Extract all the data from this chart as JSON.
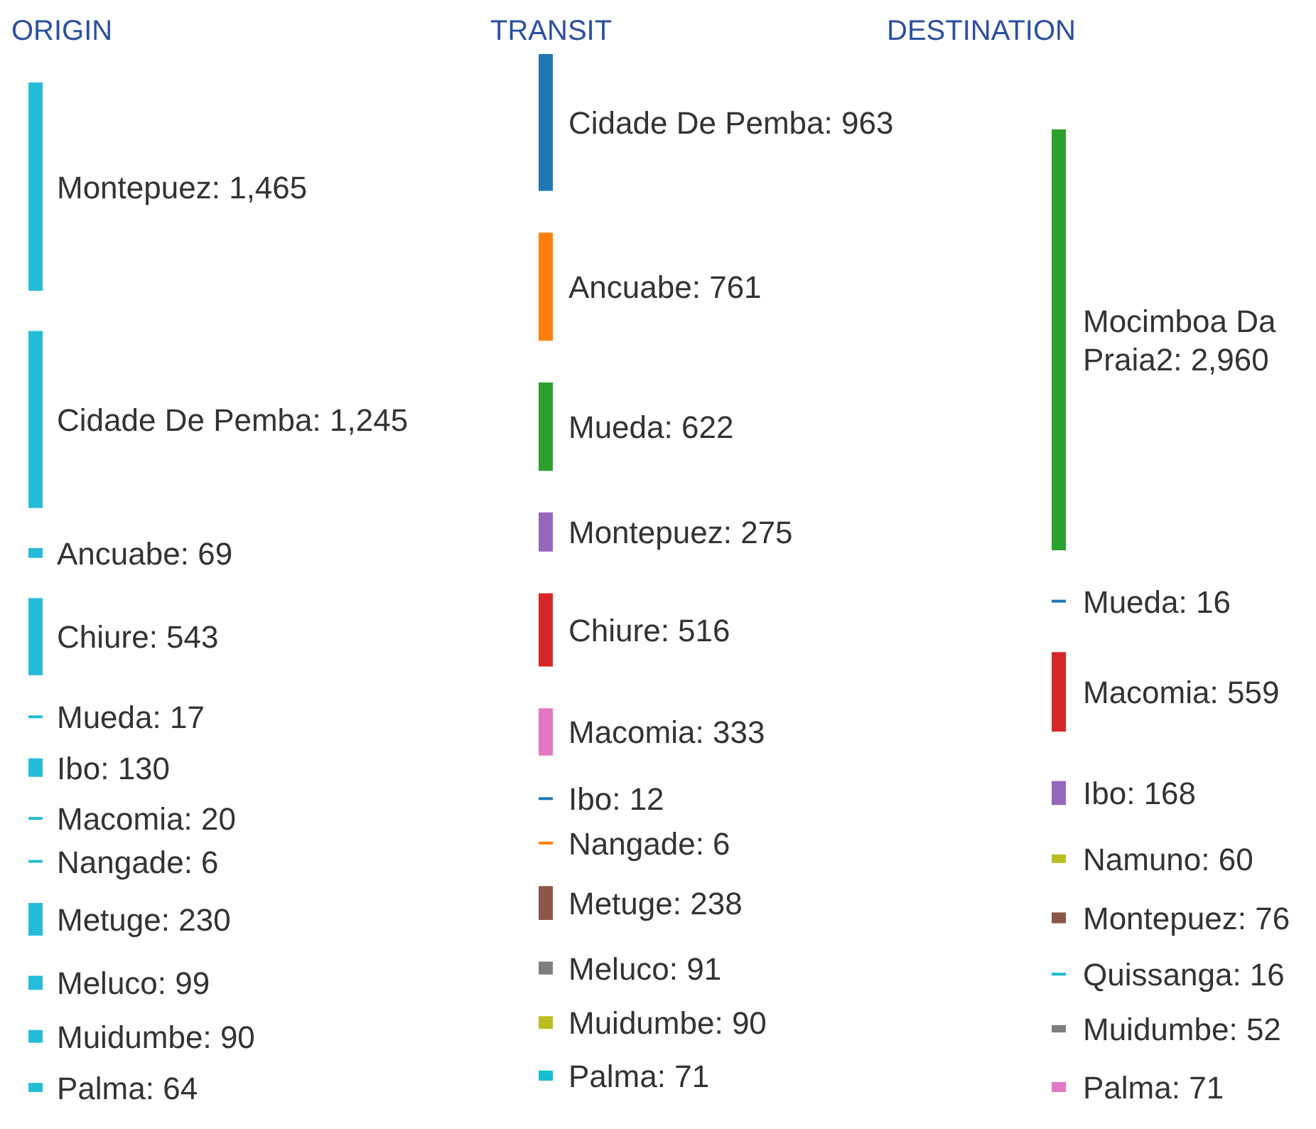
{
  "chart_data": {
    "type": "other",
    "data_labels": true,
    "categories": [
      "Montepuez",
      "Cidade De Pemba",
      "Ancuabe",
      "Chiure",
      "Mueda",
      "Ibo",
      "Macomia",
      "Nangade",
      "Metuge",
      "Meluco",
      "Muidumbe",
      "Palma",
      "Cidade De Pemba",
      "Ancuabe",
      "Mueda",
      "Montepuez",
      "Chiure",
      "Macomia",
      "Ibo",
      "Nangade",
      "Metuge",
      "Meluco",
      "Muidumbe",
      "Palma",
      "Mocimboa Da Praia2",
      "Mueda",
      "Macomia",
      "Ibo",
      "Namuno",
      "Montepuez",
      "Quissanga",
      "Muidumbe",
      "Palma"
    ],
    "colors": [
      "#26bcd7",
      "#26bcd7",
      "#26bcd7",
      "#26bcd7",
      "#26bcd7",
      "#26bcd7",
      "#26bcd7",
      "#26bcd7",
      "#26bcd7",
      "#26bcd7",
      "#26bcd7",
      "#26bcd7",
      "#1f77b4",
      "#ff7f0e",
      "#2ca02c",
      "#9467bd",
      "#d62728",
      "#e377c2",
      "#1f77b4",
      "#ff7f0e",
      "#8c564b",
      "#7f7f7f",
      "#bcbd22",
      "#17becf",
      "#2ca02c",
      "#1f77b4",
      "#d62728",
      "#9467bd",
      "#bcbd22",
      "#8c564b",
      "#17becf",
      "#7f7f7f",
      "#e377c2"
    ],
    "series": [
      {
        "name": "ORIGIN",
        "values": [
          1465,
          1245,
          69,
          543,
          17,
          130,
          20,
          6,
          230,
          99,
          90,
          64,
          null,
          null,
          null,
          null,
          null,
          null,
          null,
          null,
          null,
          null,
          null,
          null,
          null,
          null,
          null,
          null,
          null,
          null,
          null,
          null,
          null
        ],
        "value_labels": [
          ": 1,465",
          ": 1,245",
          ": 69",
          ": 543",
          ": 17",
          ": 130",
          ": 20",
          ": 6",
          ": 230",
          ": 99",
          ": 90",
          ": 64",
          null,
          null,
          null,
          null,
          null,
          null,
          null,
          null,
          null,
          null,
          null,
          null,
          null,
          null,
          null,
          null,
          null,
          null,
          null,
          null,
          null
        ]
      },
      {
        "name": "TRANSIT",
        "values": [
          null,
          null,
          null,
          null,
          null,
          null,
          null,
          null,
          null,
          null,
          null,
          null,
          963,
          761,
          622,
          275,
          516,
          333,
          12,
          6,
          238,
          91,
          90,
          71,
          null,
          null,
          null,
          null,
          null,
          null,
          null,
          null,
          null
        ],
        "value_labels": [
          null,
          null,
          null,
          null,
          null,
          null,
          null,
          null,
          null,
          null,
          null,
          null,
          ": 963",
          ": 761",
          ": 622",
          ": 275",
          ": 516",
          ": 333",
          ": 12",
          ": 6",
          ": 238",
          ": 91",
          ": 90",
          ": 71",
          null,
          null,
          null,
          null,
          null,
          null,
          null,
          null,
          null
        ]
      },
      {
        "name": "DESTINATION",
        "values": [
          null,
          null,
          null,
          null,
          null,
          null,
          null,
          null,
          null,
          null,
          null,
          null,
          null,
          null,
          null,
          null,
          null,
          null,
          null,
          null,
          null,
          null,
          null,
          null,
          2960,
          16,
          559,
          168,
          60,
          76,
          16,
          52,
          71
        ],
        "value_labels": [
          null,
          null,
          null,
          null,
          null,
          null,
          null,
          null,
          null,
          null,
          null,
          null,
          null,
          null,
          null,
          null,
          null,
          null,
          null,
          null,
          null,
          null,
          null,
          null,
          ": 2,960",
          ": 16",
          ": 559",
          ": 168",
          ": 60",
          ": 76",
          ": 16",
          ": 52",
          ": 71"
        ]
      }
    ]
  }
}
